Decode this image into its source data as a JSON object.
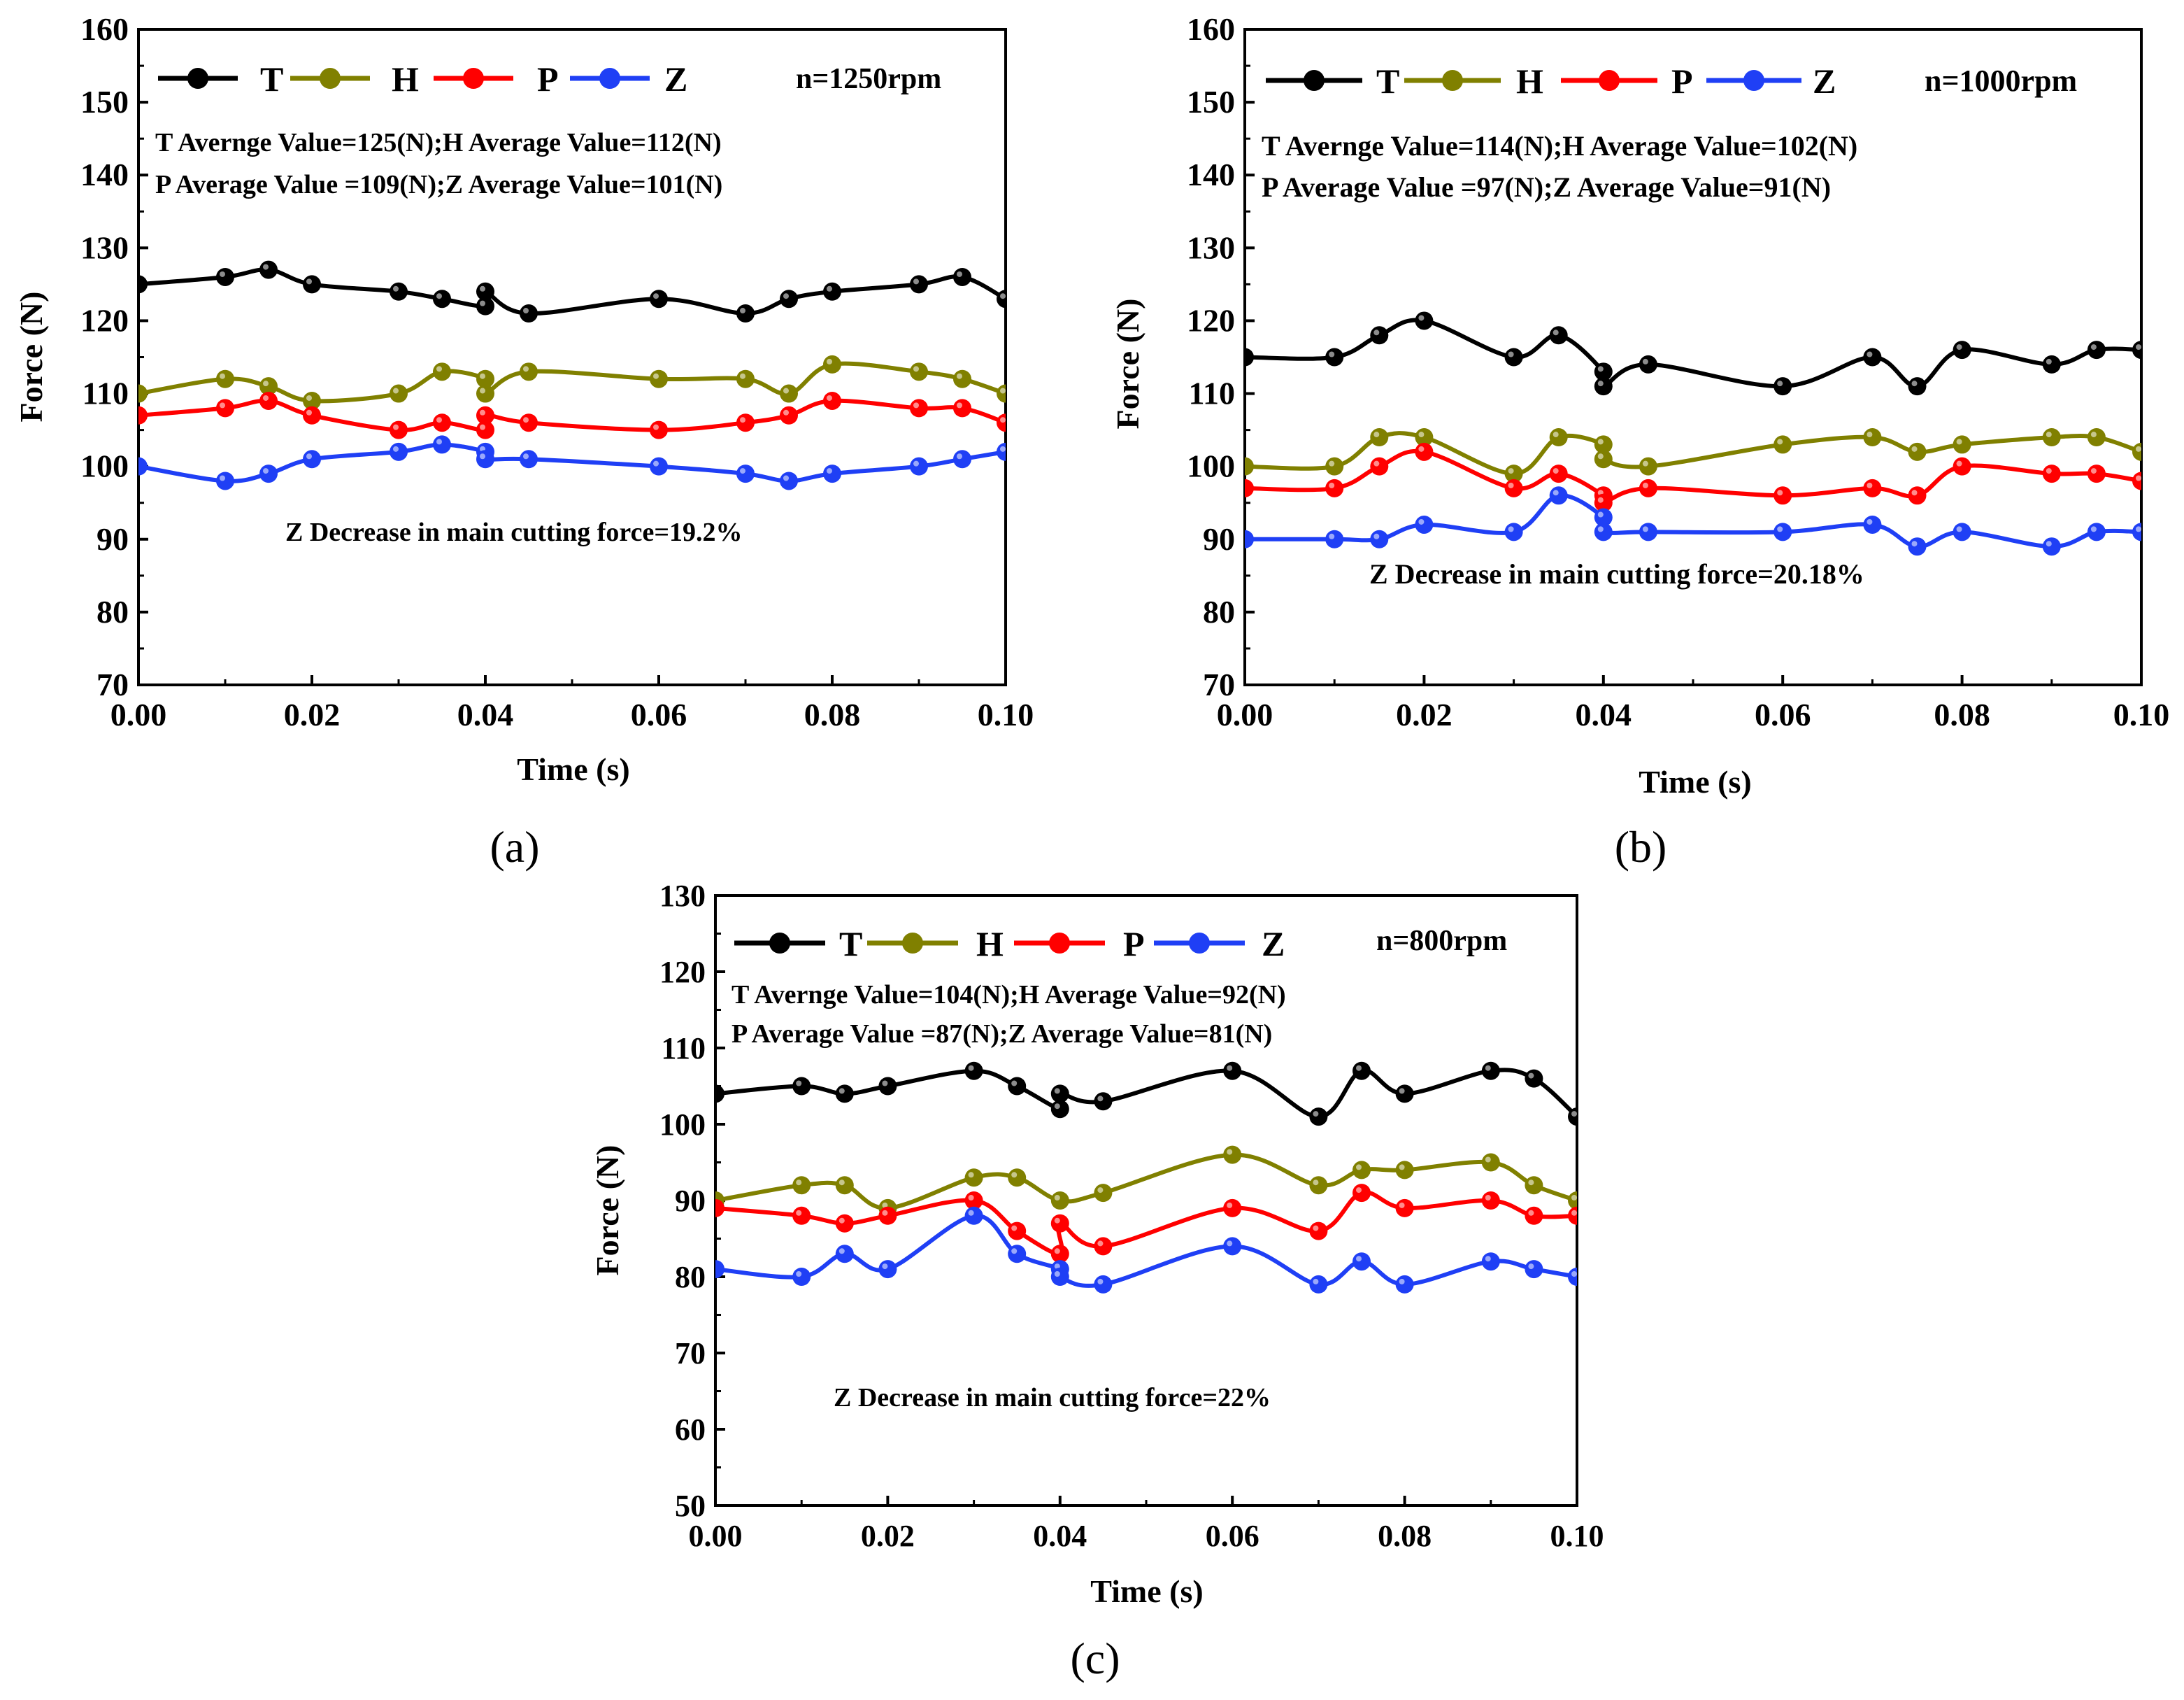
{
  "figure": {
    "panel_labels": [
      "(a)",
      "(b)",
      "(c)"
    ]
  },
  "chart_data": [
    {
      "type": "line",
      "panel": "(a)",
      "xlabel": "Time (s)",
      "ylabel": "Force (N)",
      "xlim": [
        0,
        0.1
      ],
      "ylim": [
        70,
        160
      ],
      "xticks": [
        0,
        0.02,
        0.04,
        0.06,
        0.08,
        0.1
      ],
      "xtick_labels": [
        "0.00",
        "0.02",
        "0.04",
        "0.06",
        "0.08",
        "0.10"
      ],
      "yticks": [
        70,
        80,
        90,
        100,
        110,
        120,
        130,
        140,
        150,
        160
      ],
      "ytick_labels": [
        "70",
        "80",
        "90",
        "100",
        "110",
        "120",
        "130",
        "140",
        "150",
        "160"
      ],
      "speed_label": "n=1250rpm",
      "annotations": [
        "T Avernge Value=125(N);H Average Value=112(N)",
        "P Average Value =109(N);Z Average Value=101(N)"
      ],
      "decrease_label": "Z Decrease in main cutting force=19.2%",
      "series": [
        {
          "name": "T",
          "color": "#000000",
          "points": [
            [
              0,
              125
            ],
            [
              0.01,
              126
            ],
            [
              0.015,
              127
            ],
            [
              0.02,
              125
            ],
            [
              0.03,
              124
            ],
            [
              0.035,
              123
            ],
            [
              0.04,
              122
            ],
            [
              0.04,
              124
            ],
            [
              0.045,
              121
            ],
            [
              0.06,
              123
            ],
            [
              0.07,
              121
            ],
            [
              0.075,
              123
            ],
            [
              0.08,
              124
            ],
            [
              0.09,
              125
            ],
            [
              0.095,
              126
            ],
            [
              0.1,
              123
            ]
          ]
        },
        {
          "name": "H",
          "color": "#808000",
          "points": [
            [
              0,
              110
            ],
            [
              0.01,
              112
            ],
            [
              0.015,
              111
            ],
            [
              0.02,
              109
            ],
            [
              0.03,
              110
            ],
            [
              0.035,
              113
            ],
            [
              0.04,
              112
            ],
            [
              0.04,
              110
            ],
            [
              0.045,
              113
            ],
            [
              0.06,
              112
            ],
            [
              0.07,
              112
            ],
            [
              0.075,
              110
            ],
            [
              0.08,
              114
            ],
            [
              0.09,
              113
            ],
            [
              0.095,
              112
            ],
            [
              0.1,
              110
            ]
          ]
        },
        {
          "name": "P",
          "color": "#ff0000",
          "points": [
            [
              0,
              107
            ],
            [
              0.01,
              108
            ],
            [
              0.015,
              109
            ],
            [
              0.02,
              107
            ],
            [
              0.03,
              105
            ],
            [
              0.035,
              106
            ],
            [
              0.04,
              105
            ],
            [
              0.04,
              107
            ],
            [
              0.045,
              106
            ],
            [
              0.06,
              105
            ],
            [
              0.07,
              106
            ],
            [
              0.075,
              107
            ],
            [
              0.08,
              109
            ],
            [
              0.09,
              108
            ],
            [
              0.095,
              108
            ],
            [
              0.1,
              106
            ]
          ]
        },
        {
          "name": "Z",
          "color": "#1f3ff5",
          "points": [
            [
              0,
              100
            ],
            [
              0.01,
              98
            ],
            [
              0.015,
              99
            ],
            [
              0.02,
              101
            ],
            [
              0.03,
              102
            ],
            [
              0.035,
              103
            ],
            [
              0.04,
              102
            ],
            [
              0.04,
              101
            ],
            [
              0.045,
              101
            ],
            [
              0.06,
              100
            ],
            [
              0.07,
              99
            ],
            [
              0.075,
              98
            ],
            [
              0.08,
              99
            ],
            [
              0.09,
              100
            ],
            [
              0.095,
              101
            ],
            [
              0.1,
              102
            ]
          ]
        }
      ]
    },
    {
      "type": "line",
      "panel": "(b)",
      "xlabel": "Time (s)",
      "ylabel": "Force (N)",
      "xlim": [
        0,
        0.1
      ],
      "ylim": [
        70,
        160
      ],
      "xticks": [
        0,
        0.02,
        0.04,
        0.06,
        0.08,
        0.1
      ],
      "xtick_labels": [
        "0.00",
        "0.02",
        "0.04",
        "0.06",
        "0.08",
        "0.10"
      ],
      "yticks": [
        70,
        80,
        90,
        100,
        110,
        120,
        130,
        140,
        150,
        160
      ],
      "ytick_labels": [
        "70",
        "80",
        "90",
        "100",
        "110",
        "120",
        "130",
        "140",
        "150",
        "160"
      ],
      "speed_label": "n=1000rpm",
      "annotations": [
        "T Avernge Value=114(N);H Average Value=102(N)",
        "P Average Value =97(N);Z Average Value=91(N)"
      ],
      "decrease_label": "Z Decrease in main cutting force=20.18%",
      "series": [
        {
          "name": "T",
          "color": "#000000",
          "points": [
            [
              0,
              115
            ],
            [
              0.01,
              115
            ],
            [
              0.015,
              118
            ],
            [
              0.02,
              120
            ],
            [
              0.03,
              115
            ],
            [
              0.035,
              118
            ],
            [
              0.04,
              113
            ],
            [
              0.04,
              111
            ],
            [
              0.045,
              114
            ],
            [
              0.06,
              111
            ],
            [
              0.07,
              115
            ],
            [
              0.075,
              111
            ],
            [
              0.08,
              116
            ],
            [
              0.09,
              114
            ],
            [
              0.095,
              116
            ],
            [
              0.1,
              116
            ]
          ]
        },
        {
          "name": "H",
          "color": "#808000",
          "points": [
            [
              0,
              100
            ],
            [
              0.01,
              100
            ],
            [
              0.015,
              104
            ],
            [
              0.02,
              104
            ],
            [
              0.03,
              99
            ],
            [
              0.035,
              104
            ],
            [
              0.04,
              103
            ],
            [
              0.04,
              101
            ],
            [
              0.045,
              100
            ],
            [
              0.06,
              103
            ],
            [
              0.07,
              104
            ],
            [
              0.075,
              102
            ],
            [
              0.08,
              103
            ],
            [
              0.09,
              104
            ],
            [
              0.095,
              104
            ],
            [
              0.1,
              102
            ]
          ]
        },
        {
          "name": "P",
          "color": "#ff0000",
          "points": [
            [
              0,
              97
            ],
            [
              0.01,
              97
            ],
            [
              0.015,
              100
            ],
            [
              0.02,
              102
            ],
            [
              0.03,
              97
            ],
            [
              0.035,
              99
            ],
            [
              0.04,
              96
            ],
            [
              0.04,
              95
            ],
            [
              0.045,
              97
            ],
            [
              0.06,
              96
            ],
            [
              0.07,
              97
            ],
            [
              0.075,
              96
            ],
            [
              0.08,
              100
            ],
            [
              0.09,
              99
            ],
            [
              0.095,
              99
            ],
            [
              0.1,
              98
            ]
          ]
        },
        {
          "name": "Z",
          "color": "#1f3ff5",
          "points": [
            [
              0,
              90
            ],
            [
              0.01,
              90
            ],
            [
              0.015,
              90
            ],
            [
              0.02,
              92
            ],
            [
              0.03,
              91
            ],
            [
              0.035,
              96
            ],
            [
              0.04,
              93
            ],
            [
              0.04,
              91
            ],
            [
              0.045,
              91
            ],
            [
              0.06,
              91
            ],
            [
              0.07,
              92
            ],
            [
              0.075,
              89
            ],
            [
              0.08,
              91
            ],
            [
              0.09,
              89
            ],
            [
              0.095,
              91
            ],
            [
              0.1,
              91
            ]
          ]
        }
      ]
    },
    {
      "type": "line",
      "panel": "(c)",
      "xlabel": "Time (s)",
      "ylabel": "Force (N)",
      "xlim": [
        0,
        0.1
      ],
      "ylim": [
        50,
        130
      ],
      "xticks": [
        0,
        0.02,
        0.04,
        0.06,
        0.08,
        0.1
      ],
      "xtick_labels": [
        "0.00",
        "0.02",
        "0.04",
        "0.06",
        "0.08",
        "0.10"
      ],
      "yticks": [
        50,
        60,
        70,
        80,
        90,
        100,
        110,
        120,
        130
      ],
      "ytick_labels": [
        "50",
        "60",
        "70",
        "80",
        "90",
        "100",
        "110",
        "120",
        "130"
      ],
      "speed_label": "n=800rpm",
      "annotations": [
        "T Avernge Value=104(N);H Average Value=92(N)",
        "P Average Value =87(N);Z Average Value=81(N)"
      ],
      "decrease_label": "Z Decrease in main cutting force=22%",
      "series": [
        {
          "name": "T",
          "color": "#000000",
          "points": [
            [
              0,
              104
            ],
            [
              0.01,
              105
            ],
            [
              0.015,
              104
            ],
            [
              0.02,
              105
            ],
            [
              0.03,
              107
            ],
            [
              0.035,
              105
            ],
            [
              0.04,
              102
            ],
            [
              0.04,
              104
            ],
            [
              0.045,
              103
            ],
            [
              0.06,
              107
            ],
            [
              0.07,
              101
            ],
            [
              0.075,
              107
            ],
            [
              0.08,
              104
            ],
            [
              0.09,
              107
            ],
            [
              0.095,
              106
            ],
            [
              0.1,
              101
            ]
          ]
        },
        {
          "name": "H",
          "color": "#808000",
          "points": [
            [
              0,
              90
            ],
            [
              0.01,
              92
            ],
            [
              0.015,
              92
            ],
            [
              0.02,
              89
            ],
            [
              0.03,
              93
            ],
            [
              0.035,
              93
            ],
            [
              0.04,
              90
            ],
            [
              0.045,
              91
            ],
            [
              0.06,
              96
            ],
            [
              0.07,
              92
            ],
            [
              0.075,
              94
            ],
            [
              0.08,
              94
            ],
            [
              0.09,
              95
            ],
            [
              0.095,
              92
            ],
            [
              0.1,
              90
            ]
          ]
        },
        {
          "name": "P",
          "color": "#ff0000",
          "points": [
            [
              0,
              89
            ],
            [
              0.01,
              88
            ],
            [
              0.015,
              87
            ],
            [
              0.02,
              88
            ],
            [
              0.03,
              90
            ],
            [
              0.035,
              86
            ],
            [
              0.04,
              83
            ],
            [
              0.04,
              87
            ],
            [
              0.045,
              84
            ],
            [
              0.06,
              89
            ],
            [
              0.07,
              86
            ],
            [
              0.075,
              91
            ],
            [
              0.08,
              89
            ],
            [
              0.09,
              90
            ],
            [
              0.095,
              88
            ],
            [
              0.1,
              88
            ]
          ]
        },
        {
          "name": "Z",
          "color": "#1f3ff5",
          "points": [
            [
              0,
              81
            ],
            [
              0.01,
              80
            ],
            [
              0.015,
              83
            ],
            [
              0.02,
              81
            ],
            [
              0.03,
              88
            ],
            [
              0.035,
              83
            ],
            [
              0.04,
              81
            ],
            [
              0.04,
              80
            ],
            [
              0.045,
              79
            ],
            [
              0.06,
              84
            ],
            [
              0.07,
              79
            ],
            [
              0.075,
              82
            ],
            [
              0.08,
              79
            ],
            [
              0.09,
              82
            ],
            [
              0.095,
              81
            ],
            [
              0.1,
              80
            ]
          ]
        }
      ]
    }
  ]
}
